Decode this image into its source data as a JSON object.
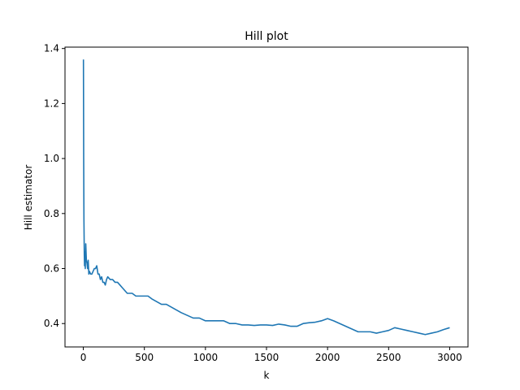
{
  "chart_data": {
    "type": "line",
    "title": "Hill plot",
    "xlabel": "k",
    "ylabel": "Hill estimator",
    "xlim": [
      -150,
      3150
    ],
    "ylim": [
      0.315,
      1.405
    ],
    "xticks": [
      0,
      500,
      1000,
      1500,
      2000,
      2500,
      3000
    ],
    "yticks": [
      0.4,
      0.6,
      0.8,
      1.0,
      1.2,
      1.4
    ],
    "ytick_labels": [
      "0.4",
      "0.6",
      "0.8",
      "1.0",
      "1.2",
      "1.4"
    ],
    "grid": false,
    "legend": "none",
    "series": [
      {
        "color": "#1f77b4",
        "x": [
          1,
          3,
          5,
          8,
          10,
          13,
          16,
          20,
          25,
          30,
          35,
          40,
          45,
          50,
          60,
          70,
          80,
          90,
          100,
          110,
          120,
          130,
          140,
          150,
          160,
          170,
          180,
          190,
          200,
          220,
          240,
          260,
          280,
          300,
          320,
          340,
          360,
          380,
          400,
          430,
          460,
          480,
          500,
          530,
          560,
          600,
          640,
          680,
          720,
          760,
          800,
          850,
          900,
          950,
          1000,
          1050,
          1100,
          1150,
          1200,
          1250,
          1300,
          1350,
          1400,
          1450,
          1500,
          1550,
          1600,
          1650,
          1700,
          1750,
          1800,
          1850,
          1900,
          1950,
          2000,
          2050,
          2100,
          2150,
          2200,
          2250,
          2300,
          2350,
          2400,
          2450,
          2500,
          2550,
          2600,
          2650,
          2700,
          2750,
          2800,
          2850,
          2900,
          2950,
          3000
        ],
        "y": [
          1.36,
          1.0,
          0.78,
          0.65,
          0.61,
          0.66,
          0.6,
          0.69,
          0.63,
          0.62,
          0.6,
          0.63,
          0.58,
          0.59,
          0.58,
          0.58,
          0.59,
          0.6,
          0.6,
          0.61,
          0.58,
          0.58,
          0.56,
          0.57,
          0.55,
          0.55,
          0.54,
          0.56,
          0.57,
          0.56,
          0.56,
          0.55,
          0.55,
          0.54,
          0.53,
          0.52,
          0.51,
          0.51,
          0.51,
          0.5,
          0.5,
          0.5,
          0.5,
          0.5,
          0.49,
          0.48,
          0.47,
          0.47,
          0.46,
          0.45,
          0.44,
          0.43,
          0.42,
          0.42,
          0.41,
          0.41,
          0.41,
          0.41,
          0.4,
          0.4,
          0.395,
          0.395,
          0.393,
          0.395,
          0.395,
          0.393,
          0.398,
          0.395,
          0.39,
          0.39,
          0.4,
          0.403,
          0.405,
          0.41,
          0.418,
          0.41,
          0.4,
          0.39,
          0.38,
          0.37,
          0.37,
          0.37,
          0.365,
          0.37,
          0.375,
          0.385,
          0.38,
          0.375,
          0.37,
          0.365,
          0.36,
          0.365,
          0.37,
          0.378,
          0.385
        ]
      }
    ]
  }
}
